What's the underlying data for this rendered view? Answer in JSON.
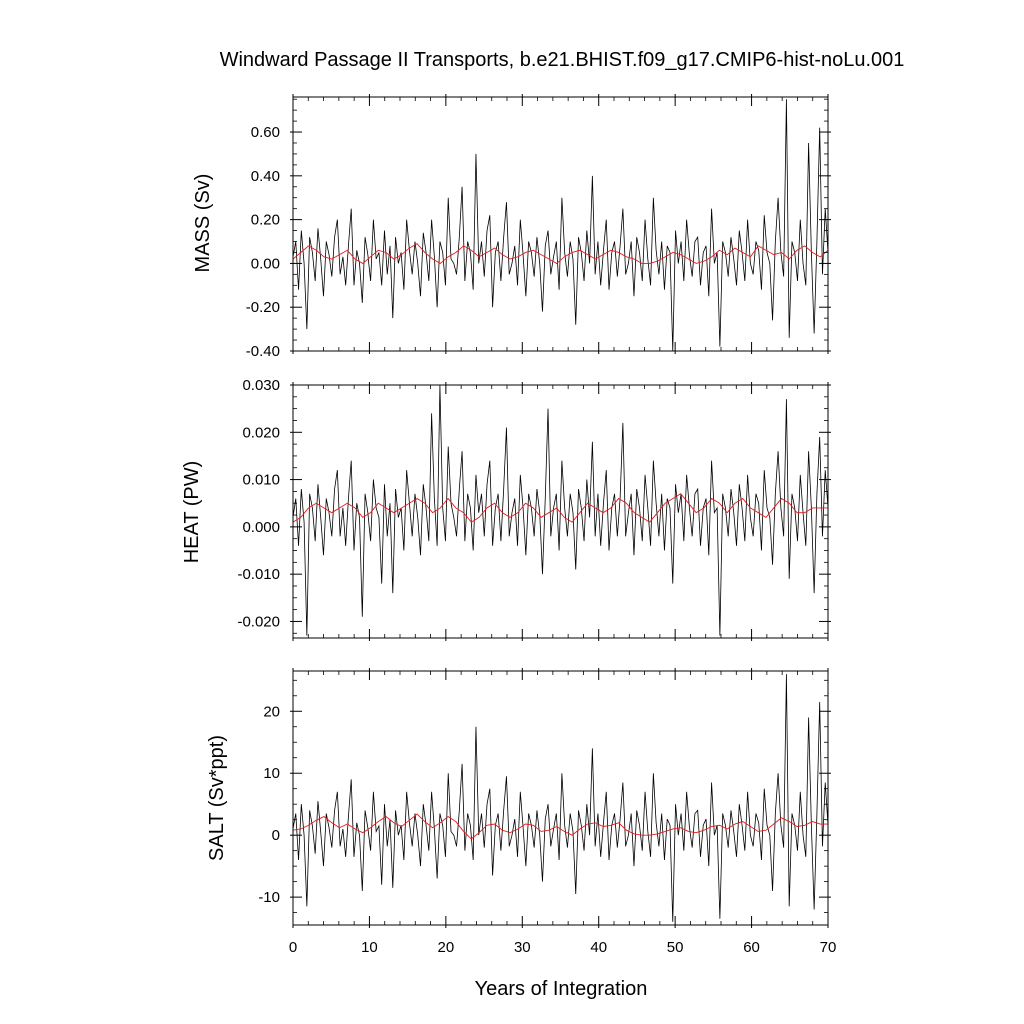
{
  "title": "Windward Passage II Transports, b.e21.BHIST.f09_g17.CMIP6-hist-noLu.001",
  "xlabel": "Years of Integration",
  "colors": {
    "monthly": "#000000",
    "running_mean": "#e41a1c",
    "axes": "#000000"
  },
  "chart_data": [
    {
      "type": "line",
      "ylabel": "MASS (Sv)",
      "xlim": [
        0,
        70
      ],
      "ylim": [
        -0.4,
        0.76
      ],
      "yticks": [
        -0.4,
        -0.2,
        0.0,
        0.2,
        0.4,
        0.6
      ],
      "ytick_labels": [
        "-0.40",
        "-0.20",
        "0.00",
        "0.20",
        "0.40",
        "0.60"
      ],
      "series": [
        {
          "values": [
            0.03,
            0.1,
            -0.12,
            0.15,
            0.0,
            -0.3,
            0.12,
            0.05,
            -0.08,
            0.16,
            0.02,
            -0.15,
            0.1,
            0.04,
            -0.06,
            0.12,
            0.2,
            -0.05,
            0.03,
            -0.1,
            0.08,
            0.25,
            -0.1,
            0.06,
            0.0,
            -0.18,
            0.12,
            0.04,
            -0.08,
            0.2,
            0.02,
            0.05,
            -0.1,
            0.15,
            -0.05,
            0.08,
            -0.25,
            0.12,
            0.0,
            0.05,
            -0.12,
            0.2,
            0.06,
            -0.05,
            0.1,
            0.0,
            -0.15,
            0.14,
            0.05,
            -0.08,
            0.2,
            0.03,
            -0.2,
            0.1,
            0.05,
            -0.1,
            0.3,
            0.02,
            0.0,
            -0.05,
            0.12,
            0.35,
            -0.08,
            0.1,
            0.05,
            -0.12,
            0.5,
            0.0,
            0.1,
            -0.06,
            0.15,
            0.22,
            -0.2,
            0.05,
            0.1,
            -0.08,
            0.12,
            0.28,
            -0.05,
            0.0,
            0.08,
            -0.1,
            0.2,
            0.04,
            -0.15,
            0.1,
            0.05,
            -0.06,
            0.12,
            0.0,
            -0.22,
            0.08,
            0.15,
            -0.05,
            0.03,
            0.1,
            -0.12,
            0.3,
            0.05,
            -0.06,
            0.1,
            0.02,
            -0.28,
            0.12,
            0.05,
            -0.08,
            0.15,
            0.0,
            0.4,
            -0.05,
            0.1,
            -0.1,
            0.06,
            0.2,
            -0.12,
            0.05,
            0.1,
            -0.06,
            0.08,
            0.25,
            -0.05,
            0.0,
            0.1,
            -0.15,
            0.12,
            0.05,
            -0.08,
            0.2,
            0.02,
            -0.1,
            0.3,
            0.06,
            -0.05,
            0.1,
            -0.12,
            0.08,
            0.05,
            -0.4,
            0.15,
            0.0,
            0.1,
            -0.08,
            0.2,
            0.04,
            -0.06,
            0.1,
            0.12,
            -0.1,
            0.05,
            0.08,
            -0.15,
            0.25,
            0.0,
            0.05,
            -0.38,
            0.1,
            0.05,
            -0.06,
            0.12,
            0.02,
            -0.1,
            0.15,
            0.05,
            -0.08,
            0.2,
            0.0,
            -0.05,
            0.1,
            0.06,
            -0.12,
            0.22,
            0.05,
            0.0,
            -0.26,
            0.1,
            0.3,
            0.05,
            -0.06,
            0.75,
            -0.34,
            0.1,
            0.05,
            -0.08,
            0.2,
            0.0,
            -0.1,
            0.55,
            0.05,
            -0.32,
            0.1,
            0.62,
            -0.05,
            0.25,
            0.05
          ]
        },
        {
          "values": [
            0.02,
            0.05,
            0.08,
            0.06,
            0.03,
            0.02,
            0.04,
            0.06,
            0.02,
            0.0,
            0.03,
            0.06,
            0.05,
            0.02,
            0.04,
            0.07,
            0.09,
            0.05,
            0.02,
            0.0,
            0.03,
            0.05,
            0.08,
            0.06,
            0.03,
            0.05,
            0.07,
            0.04,
            0.02,
            0.03,
            0.05,
            0.06,
            0.04,
            0.02,
            0.0,
            0.03,
            0.05,
            0.06,
            0.04,
            0.02,
            0.04,
            0.06,
            0.05,
            0.03,
            0.02,
            0.0,
            0.0,
            0.01,
            0.03,
            0.05,
            0.04,
            0.02,
            0.0,
            0.01,
            0.03,
            0.06,
            0.04,
            0.07,
            0.05,
            0.03,
            0.08,
            0.06,
            0.04,
            0.05,
            0.02,
            0.06,
            0.08,
            0.05,
            0.03,
            0.06
          ]
        }
      ]
    },
    {
      "type": "line",
      "ylabel": "HEAT (PW)",
      "xlim": [
        0,
        70
      ],
      "ylim": [
        -0.0235,
        0.03
      ],
      "yticks": [
        -0.02,
        -0.01,
        0.0,
        0.01,
        0.02,
        0.03
      ],
      "ytick_labels": [
        "-0.020",
        "-0.010",
        "0.000",
        "0.010",
        "0.020",
        "0.030"
      ],
      "series": [
        {
          "values": [
            0.002,
            0.006,
            -0.004,
            0.008,
            0.001,
            -0.023,
            0.007,
            0.004,
            -0.003,
            0.009,
            0.002,
            -0.006,
            0.006,
            0.003,
            -0.002,
            0.008,
            0.012,
            -0.002,
            0.004,
            -0.004,
            0.006,
            0.014,
            -0.005,
            0.005,
            0.002,
            -0.019,
            0.007,
            0.003,
            -0.003,
            0.01,
            0.004,
            0.002,
            -0.012,
            0.009,
            -0.002,
            0.005,
            -0.014,
            0.008,
            0.002,
            0.004,
            -0.005,
            0.012,
            0.005,
            -0.002,
            0.007,
            0.002,
            -0.006,
            0.009,
            0.004,
            -0.003,
            0.024,
            0.006,
            -0.004,
            0.03,
            0.004,
            -0.003,
            0.017,
            0.005,
            0.002,
            -0.002,
            0.008,
            0.016,
            -0.003,
            0.007,
            0.004,
            -0.005,
            0.011,
            0.003,
            0.007,
            -0.002,
            0.009,
            0.014,
            -0.004,
            0.004,
            0.007,
            -0.003,
            0.008,
            0.021,
            -0.002,
            0.003,
            0.006,
            -0.004,
            0.011,
            0.004,
            -0.006,
            0.007,
            0.004,
            -0.002,
            0.008,
            0.003,
            -0.01,
            0.006,
            0.025,
            -0.002,
            0.004,
            0.007,
            -0.005,
            0.014,
            0.004,
            -0.002,
            0.007,
            0.003,
            -0.009,
            0.008,
            0.004,
            -0.003,
            0.01,
            0.002,
            0.018,
            -0.002,
            0.007,
            -0.004,
            0.005,
            0.012,
            -0.005,
            0.004,
            0.007,
            -0.002,
            0.006,
            0.022,
            -0.002,
            0.003,
            0.007,
            -0.006,
            0.008,
            0.004,
            -0.003,
            0.011,
            0.004,
            -0.004,
            0.014,
            0.005,
            -0.002,
            0.007,
            -0.005,
            0.006,
            0.004,
            -0.012,
            0.009,
            0.003,
            0.007,
            -0.003,
            0.011,
            0.004,
            -0.002,
            0.007,
            0.008,
            -0.004,
            0.004,
            0.006,
            -0.006,
            0.014,
            0.003,
            0.004,
            -0.023,
            0.007,
            0.004,
            -0.002,
            0.008,
            0.003,
            -0.004,
            0.009,
            0.004,
            -0.003,
            0.011,
            0.002,
            -0.002,
            0.007,
            0.005,
            -0.005,
            0.012,
            0.004,
            0.002,
            -0.008,
            0.007,
            0.016,
            0.004,
            -0.002,
            0.027,
            -0.011,
            0.007,
            0.004,
            -0.003,
            0.011,
            0.003,
            -0.004,
            0.016,
            0.004,
            -0.014,
            0.007,
            0.019,
            -0.002,
            0.012,
            0.004
          ]
        },
        {
          "values": [
            0.001,
            0.002,
            0.004,
            0.005,
            0.004,
            0.003,
            0.004,
            0.005,
            0.004,
            0.002,
            0.003,
            0.005,
            0.004,
            0.003,
            0.004,
            0.005,
            0.006,
            0.005,
            0.003,
            0.004,
            0.006,
            0.004,
            0.003,
            0.001,
            0.002,
            0.004,
            0.005,
            0.003,
            0.002,
            0.003,
            0.005,
            0.004,
            0.002,
            0.003,
            0.004,
            0.002,
            0.001,
            0.003,
            0.005,
            0.004,
            0.003,
            0.004,
            0.006,
            0.005,
            0.003,
            0.002,
            0.001,
            0.003,
            0.005,
            0.006,
            0.007,
            0.005,
            0.003,
            0.004,
            0.006,
            0.005,
            0.003,
            0.005,
            0.006,
            0.004,
            0.003,
            0.002,
            0.004,
            0.006,
            0.005,
            0.003,
            0.003,
            0.004,
            0.004,
            0.004
          ]
        }
      ]
    },
    {
      "type": "line",
      "ylabel": "SALT (Sv*ppt)",
      "xlim": [
        0,
        70
      ],
      "ylim": [
        -14.5,
        26.5
      ],
      "yticks": [
        -10,
        0,
        10,
        20
      ],
      "ytick_labels": [
        "-10",
        "0",
        "10",
        "20"
      ],
      "series": [
        {
          "values": [
            1.0,
            3.5,
            -4.0,
            5.0,
            0.0,
            -11.5,
            4.0,
            1.5,
            -3.0,
            5.5,
            0.5,
            -5.0,
            3.5,
            1.2,
            -2.0,
            4.0,
            7.0,
            -1.8,
            1.0,
            -3.5,
            3.0,
            9.0,
            -3.5,
            2.0,
            0.0,
            -9.0,
            4.0,
            1.2,
            -2.5,
            7.0,
            0.6,
            1.5,
            -8.0,
            5.0,
            -1.8,
            2.5,
            -8.5,
            4.0,
            0.0,
            1.6,
            -4.0,
            7.0,
            2.0,
            -1.8,
            3.5,
            0.0,
            -5.0,
            5.0,
            1.6,
            -2.5,
            7.0,
            1.0,
            -7.0,
            3.5,
            1.6,
            -3.5,
            10.0,
            0.6,
            0.0,
            -1.8,
            4.0,
            11.5,
            -2.5,
            3.5,
            1.6,
            -4.0,
            17.5,
            0.0,
            3.5,
            -2.0,
            5.0,
            7.5,
            -6.5,
            1.6,
            3.5,
            -2.5,
            4.0,
            9.5,
            -1.8,
            0.0,
            2.6,
            -3.5,
            7.0,
            1.3,
            -5.0,
            3.5,
            1.6,
            -2.0,
            4.0,
            0.0,
            -7.5,
            2.6,
            5.0,
            -1.8,
            1.0,
            3.5,
            -4.0,
            10.0,
            1.6,
            -2.0,
            3.5,
            0.6,
            -9.5,
            4.0,
            1.6,
            -2.5,
            5.0,
            0.0,
            14.0,
            -1.8,
            3.5,
            -3.5,
            2.0,
            7.0,
            -4.0,
            1.6,
            3.5,
            -2.0,
            2.6,
            8.5,
            -1.8,
            0.0,
            3.5,
            -5.0,
            4.0,
            1.6,
            -2.5,
            7.0,
            0.6,
            -3.5,
            10.0,
            2.0,
            -1.8,
            3.5,
            -4.0,
            2.6,
            1.6,
            -14.0,
            5.0,
            0.0,
            3.5,
            -2.5,
            7.0,
            1.3,
            -2.0,
            3.5,
            4.0,
            -3.5,
            1.6,
            2.6,
            -5.0,
            8.5,
            0.0,
            1.6,
            -13.5,
            3.5,
            1.6,
            -2.0,
            4.0,
            0.6,
            -3.5,
            5.0,
            1.6,
            -2.5,
            7.0,
            0.0,
            -1.8,
            3.5,
            2.0,
            -4.0,
            7.5,
            1.6,
            0.0,
            -9.0,
            3.5,
            10.0,
            1.6,
            -2.0,
            26.0,
            -11.5,
            3.5,
            1.6,
            -2.5,
            7.0,
            0.0,
            -3.5,
            19.0,
            1.6,
            -12.0,
            3.5,
            21.5,
            -1.8,
            8.5,
            1.6
          ]
        },
        {
          "values": [
            0.8,
            1.0,
            1.6,
            2.4,
            3.0,
            2.0,
            1.2,
            1.8,
            1.0,
            0.4,
            1.2,
            2.2,
            3.0,
            2.0,
            1.4,
            2.4,
            3.4,
            2.2,
            1.2,
            2.0,
            3.0,
            2.2,
            0.6,
            -0.6,
            0.4,
            1.6,
            1.8,
            0.8,
            0.4,
            1.0,
            1.8,
            1.6,
            0.6,
            0.8,
            1.4,
            0.6,
            0.0,
            1.0,
            1.8,
            2.0,
            1.4,
            1.6,
            2.0,
            0.8,
            0.2,
            0.0,
            0.0,
            0.2,
            0.6,
            1.0,
            1.2,
            0.6,
            0.4,
            0.8,
            1.4,
            1.6,
            1.0,
            1.8,
            2.2,
            1.4,
            0.6,
            0.8,
            1.8,
            2.8,
            2.2,
            1.4,
            1.6,
            2.2,
            1.8,
            1.8
          ]
        }
      ]
    }
  ],
  "xticks": [
    0,
    10,
    20,
    30,
    40,
    50,
    60,
    70
  ],
  "xtick_labels": [
    "0",
    "10",
    "20",
    "30",
    "40",
    "50",
    "60",
    "70"
  ]
}
